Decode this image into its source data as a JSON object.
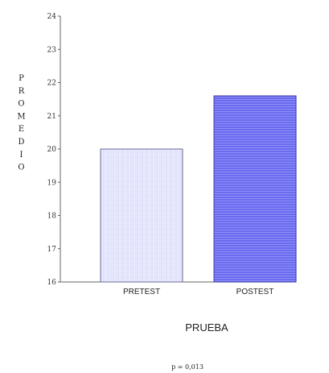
{
  "chart_data": {
    "type": "bar",
    "categories": [
      "PRETEST",
      "POSTEST"
    ],
    "values": [
      20.0,
      21.6
    ],
    "xlabel": "PRUEBA",
    "ylabel": "PROMEDIO",
    "ylim": [
      16,
      24
    ],
    "yticks": [
      "16",
      "17",
      "18",
      "19",
      "20",
      "21",
      "22",
      "23",
      "24"
    ],
    "grid": false,
    "legend": "none",
    "colors": {
      "PRETEST": "#ebebff",
      "POSTEST": "#6b6bf0",
      "axis": "#666666"
    },
    "annotation": "p = 0,013"
  }
}
